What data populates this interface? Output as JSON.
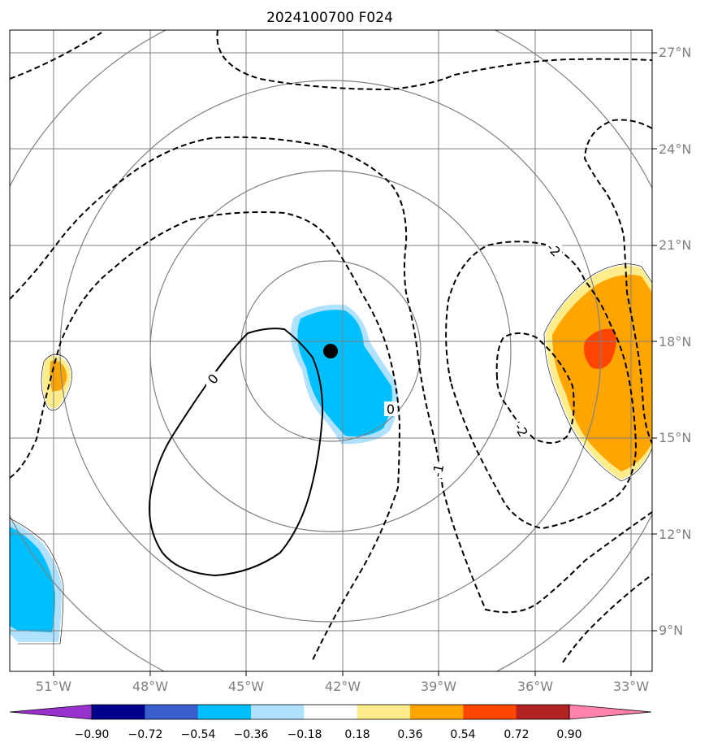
{
  "title": "2024100700 F024",
  "lon_labels": [
    "51°W",
    "48°W",
    "45°W",
    "42°W",
    "39°W",
    "36°W",
    "33°W"
  ],
  "lat_labels": [
    "27°N",
    "24°N",
    "21°N",
    "18°N",
    "15°N",
    "12°N",
    "9°N"
  ],
  "contour_labels": [
    "0",
    "0",
    "-1",
    "-2",
    "-2"
  ],
  "storm_center": {
    "lon": "42.4°W",
    "lat": "17.7°N"
  },
  "colorbar": {
    "ticks": [
      "−0.90",
      "−0.72",
      "−0.54",
      "−0.36",
      "−0.18",
      "0.18",
      "0.36",
      "0.54",
      "0.72",
      "0.90"
    ],
    "colors": [
      "#9932cc",
      "#00008b",
      "#3a5fcd",
      "#00bfff",
      "#b0e2ff",
      "#ffffff",
      "#ffec8b",
      "#ffa500",
      "#ff4500",
      "#b22222",
      "#ff82ab"
    ]
  },
  "colors": {
    "grid": "#808080",
    "range_rings": "#808080",
    "contour": "#000000",
    "center_marker": "#000000"
  }
}
